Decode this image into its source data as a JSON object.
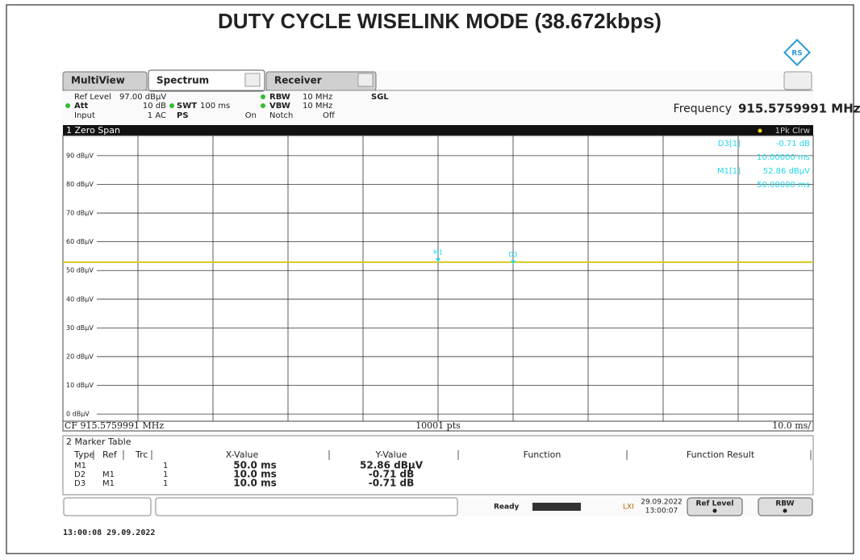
{
  "title": "DUTY CYCLE WISELINK MODE (38.672kbps)",
  "tabs": [
    "MultiView",
    "Spectrum",
    "Receiver"
  ],
  "settings": {
    "ref_level_label": "Ref Level",
    "ref_level": "97.00 dBµV",
    "att_label": "Att",
    "att": "10 dB",
    "swt_label": "SWT",
    "swt": "100 ms",
    "rbw_label": "RBW",
    "rbw": "10 MHz",
    "vbw_label": "VBW",
    "vbw": "10 MHz",
    "input_label": "Input",
    "input": "1 AC",
    "ps_label": "PS",
    "ps": "On",
    "notch_label": "Notch",
    "notch": "Off",
    "mode": "SGL",
    "frequency_label": "Frequency",
    "frequency": "915.5759991 MHz"
  },
  "window": {
    "title": "1 Zero Span",
    "trace_label": "1Pk Clrw",
    "readouts": [
      {
        "name": "D3[1]",
        "value": "-0.71 dB",
        "sub": "10.00000 ms"
      },
      {
        "name": "M1[1]",
        "value": "52.86 dBµV",
        "sub": "50.00000 ms"
      }
    ],
    "ylim": [
      -2.5,
      97
    ],
    "yticks": [
      {
        "value": 0,
        "label": "0 dBµV"
      },
      {
        "value": 10,
        "label": "10 dBµV"
      },
      {
        "value": 20,
        "label": "20 dBµV"
      },
      {
        "value": 30,
        "label": "30 dBµV"
      },
      {
        "value": 40,
        "label": "40 dBµV"
      },
      {
        "value": 50,
        "label": "50 dBµV"
      },
      {
        "value": 60,
        "label": "60 dBµV"
      },
      {
        "value": 70,
        "label": "70 dBµV"
      },
      {
        "value": 80,
        "label": "80 dBµV"
      },
      {
        "value": 90,
        "label": "90 dBµV"
      }
    ],
    "xlim": [
      0,
      100
    ],
    "trace": {
      "color": "#d8c820",
      "x": [
        0,
        100
      ],
      "values": [
        52.9,
        52.9
      ]
    },
    "markers": [
      {
        "label": "M1",
        "x": 50,
        "y": 52.86
      },
      {
        "label": "D3",
        "x": 60,
        "y": 52.15
      }
    ],
    "footer": {
      "center": "CF 915.5759991 MHz",
      "points": "10001 pts",
      "scale": "10.0 ms/"
    }
  },
  "marker_table": {
    "title": "2 Marker Table",
    "columns": [
      "Type",
      "Ref",
      "Trc",
      "X-Value",
      "Y-Value",
      "Function",
      "Function Result"
    ],
    "rows": [
      {
        "type": "M1",
        "trc": "1",
        "x": "50.0 ms",
        "y": "52.86 dBµV"
      },
      {
        "type": "D2",
        "ref": "M1",
        "trc": "1",
        "x": "10.0 ms",
        "y": "-0.71 dB"
      },
      {
        "type": "D3",
        "ref": "M1",
        "trc": "1",
        "x": "10.0 ms",
        "y": "-0.71 dB"
      }
    ]
  },
  "status": {
    "state": "Ready",
    "date": "29.09.2022",
    "time": "13:00:07",
    "buttons": [
      "Ref Level",
      "RBW"
    ]
  },
  "timestamp": "13:00:08  29.09.2022"
}
